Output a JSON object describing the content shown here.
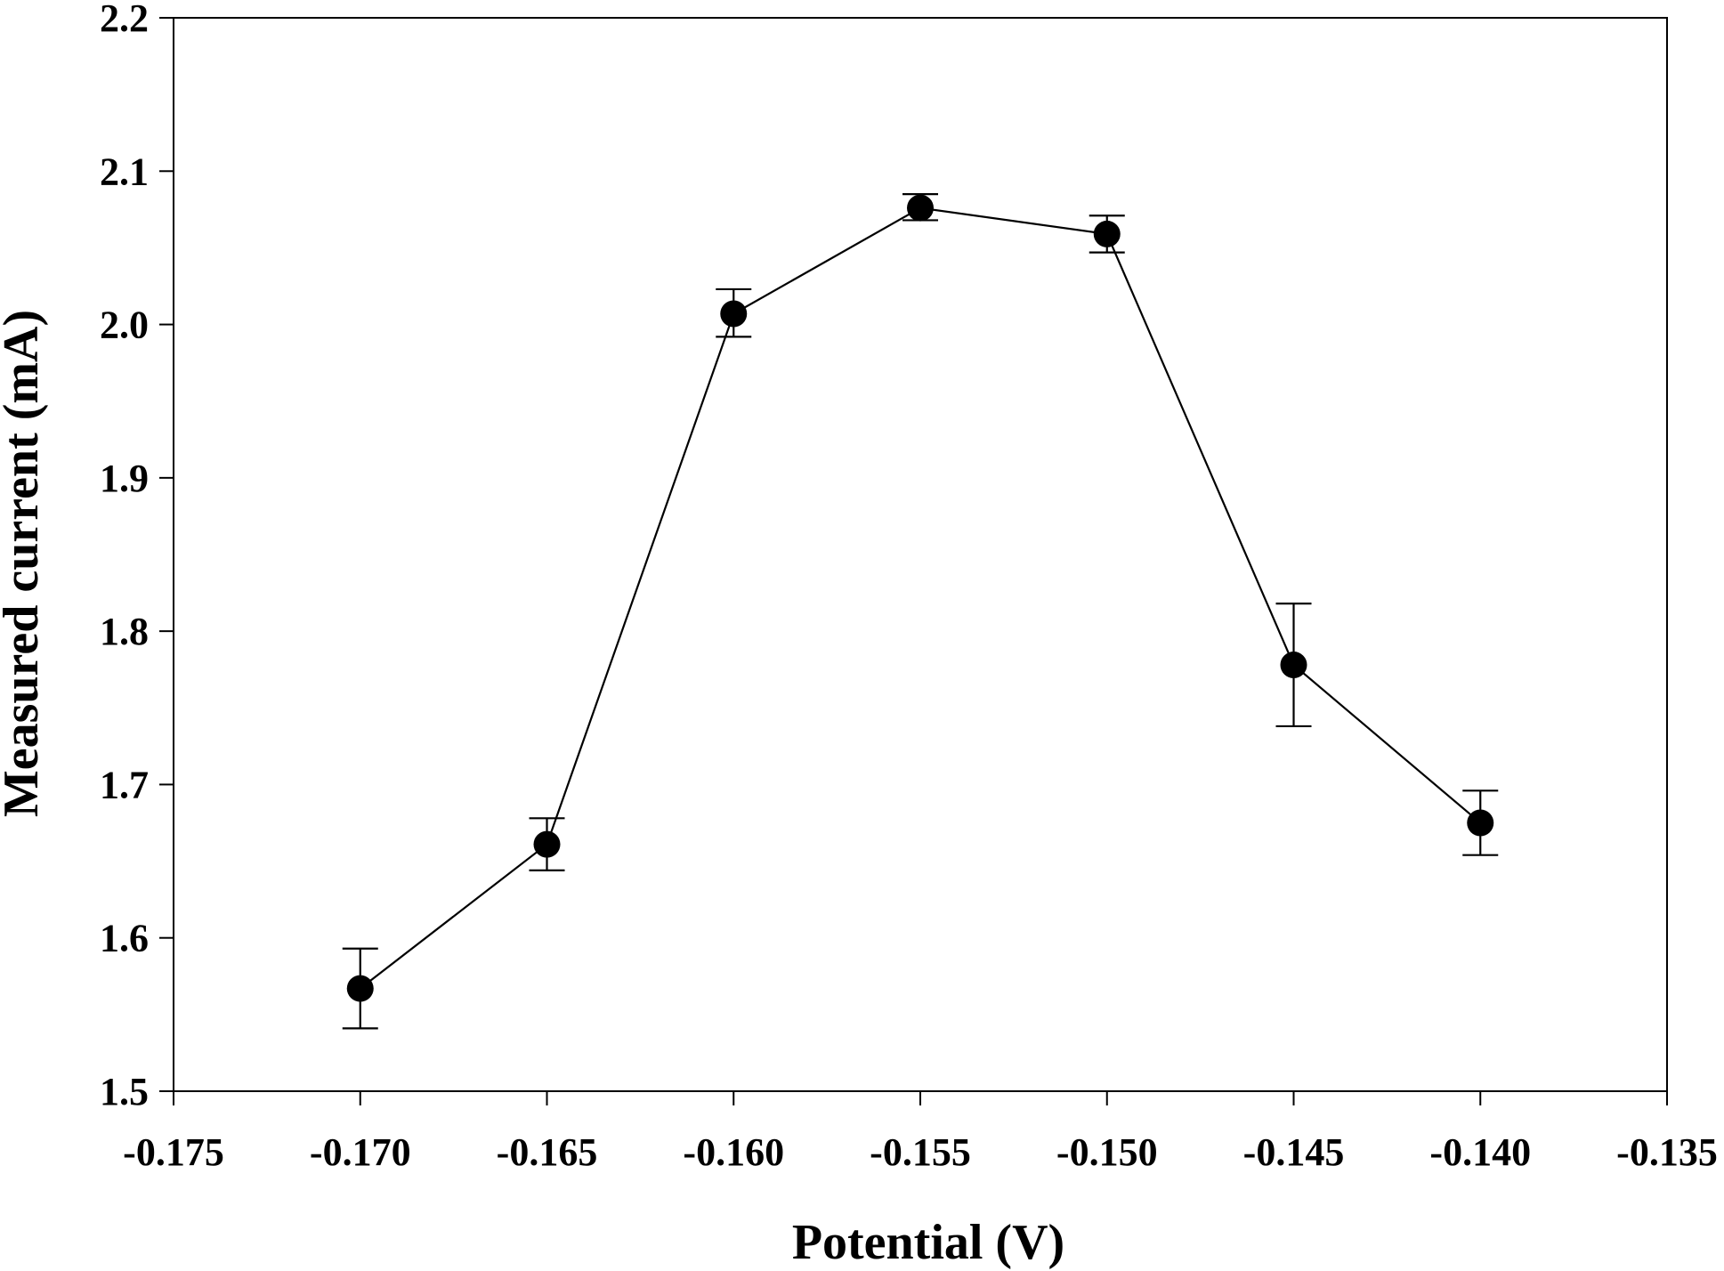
{
  "chart_data": {
    "type": "scatter",
    "xlabel": "Potential (V)",
    "ylabel": "Measured current (mA)",
    "xlim": [
      -0.175,
      -0.135
    ],
    "ylim": [
      1.5,
      2.2
    ],
    "xticks": [
      -0.175,
      -0.17,
      -0.165,
      -0.16,
      -0.155,
      -0.15,
      -0.145,
      -0.14,
      -0.135
    ],
    "xtick_labels": [
      "-0.175",
      "-0.170",
      "-0.165",
      "-0.160",
      "-0.155",
      "-0.150",
      "-0.145",
      "-0.140",
      "-0.135"
    ],
    "yticks": [
      1.5,
      1.6,
      1.7,
      1.8,
      1.9,
      2.0,
      2.1,
      2.2
    ],
    "ytick_labels": [
      "1.5",
      "1.6",
      "1.7",
      "1.8",
      "1.9",
      "2.0",
      "2.1",
      "2.2"
    ],
    "grid": false,
    "series": [
      {
        "marker": "filled-circle",
        "line": true,
        "color": "#000000",
        "points": [
          {
            "x": -0.17,
            "y": 1.567,
            "err_low": 1.541,
            "err_high": 1.593
          },
          {
            "x": -0.165,
            "y": 1.661,
            "err_low": 1.644,
            "err_high": 1.678
          },
          {
            "x": -0.16,
            "y": 2.007,
            "err_low": 1.992,
            "err_high": 2.023
          },
          {
            "x": -0.155,
            "y": 2.076,
            "err_low": 2.068,
            "err_high": 2.085
          },
          {
            "x": -0.15,
            "y": 2.059,
            "err_low": 2.047,
            "err_high": 2.071
          },
          {
            "x": -0.145,
            "y": 1.778,
            "err_low": 1.738,
            "err_high": 1.818
          },
          {
            "x": -0.14,
            "y": 1.675,
            "err_low": 1.654,
            "err_high": 1.696
          }
        ]
      }
    ]
  }
}
